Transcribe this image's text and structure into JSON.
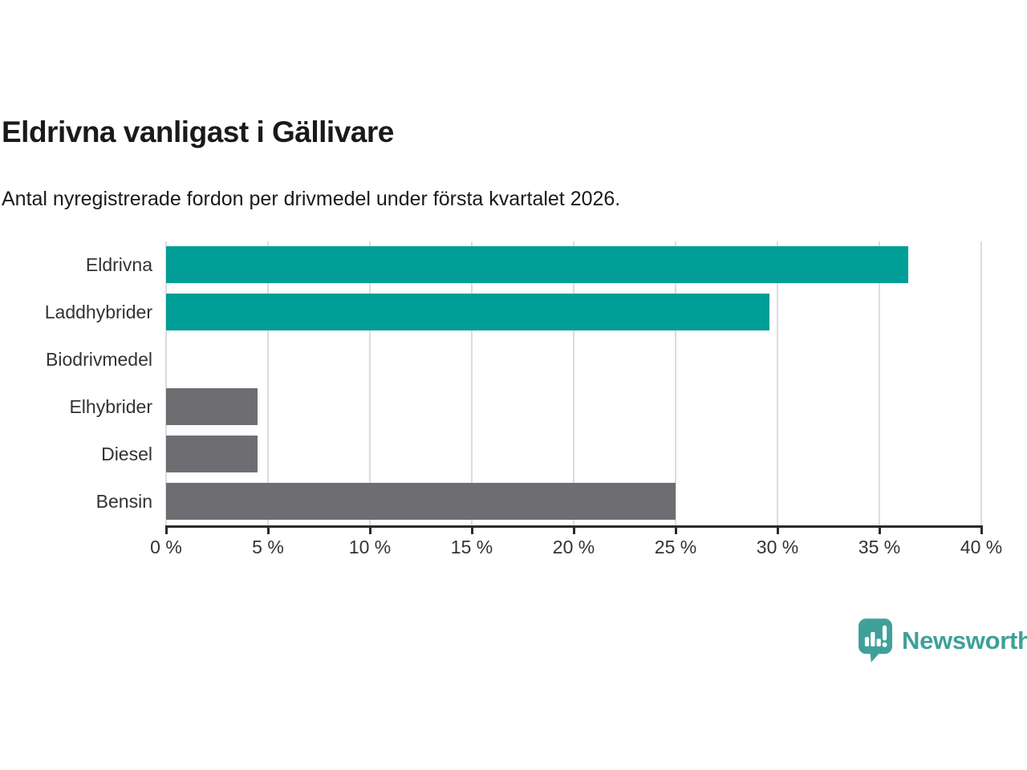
{
  "header": {
    "title": "Eldrivna vanligast i Gällivare",
    "subtitle": "Antal nyregistrerade fordon per drivmedel under första kvartalet 2026."
  },
  "chart_data": {
    "type": "bar",
    "orientation": "horizontal",
    "title": "Eldrivna vanligast i Gällivare",
    "subtitle": "Antal nyregistrerade fordon per drivmedel under första kvartalet 2026.",
    "categories": [
      "Eldrivna",
      "Laddhybrider",
      "Biodrivmedel",
      "Elhybrider",
      "Diesel",
      "Bensin"
    ],
    "values": [
      36.4,
      29.6,
      0,
      4.5,
      4.5,
      25
    ],
    "unit": "%",
    "xlabel": "",
    "ylabel": "",
    "xlim": [
      0,
      40
    ],
    "x_tick_step": 5,
    "x_tick_labels": [
      "0 %",
      "5 %",
      "10 %",
      "15 %",
      "20 %",
      "25 %",
      "30 %",
      "35 %",
      "40 %"
    ],
    "bar_colors": [
      "#009e96",
      "#009e96",
      "#6e6e72",
      "#6e6e72",
      "#6e6e72",
      "#6e6e72"
    ],
    "grid": true,
    "legend_position": "none"
  },
  "styles": {
    "teal": "#009e96",
    "gray": "#6e6e72",
    "gridline_color": "#dcdcdc",
    "axis_color": "#2b2b2b",
    "label_color": "#333333",
    "title_color": "#1a1a1a",
    "logo_color": "#40a099"
  },
  "logo": {
    "text": "Newsworthy",
    "icon": "speech-bubble-with-bar-chart-and-exclamation"
  }
}
